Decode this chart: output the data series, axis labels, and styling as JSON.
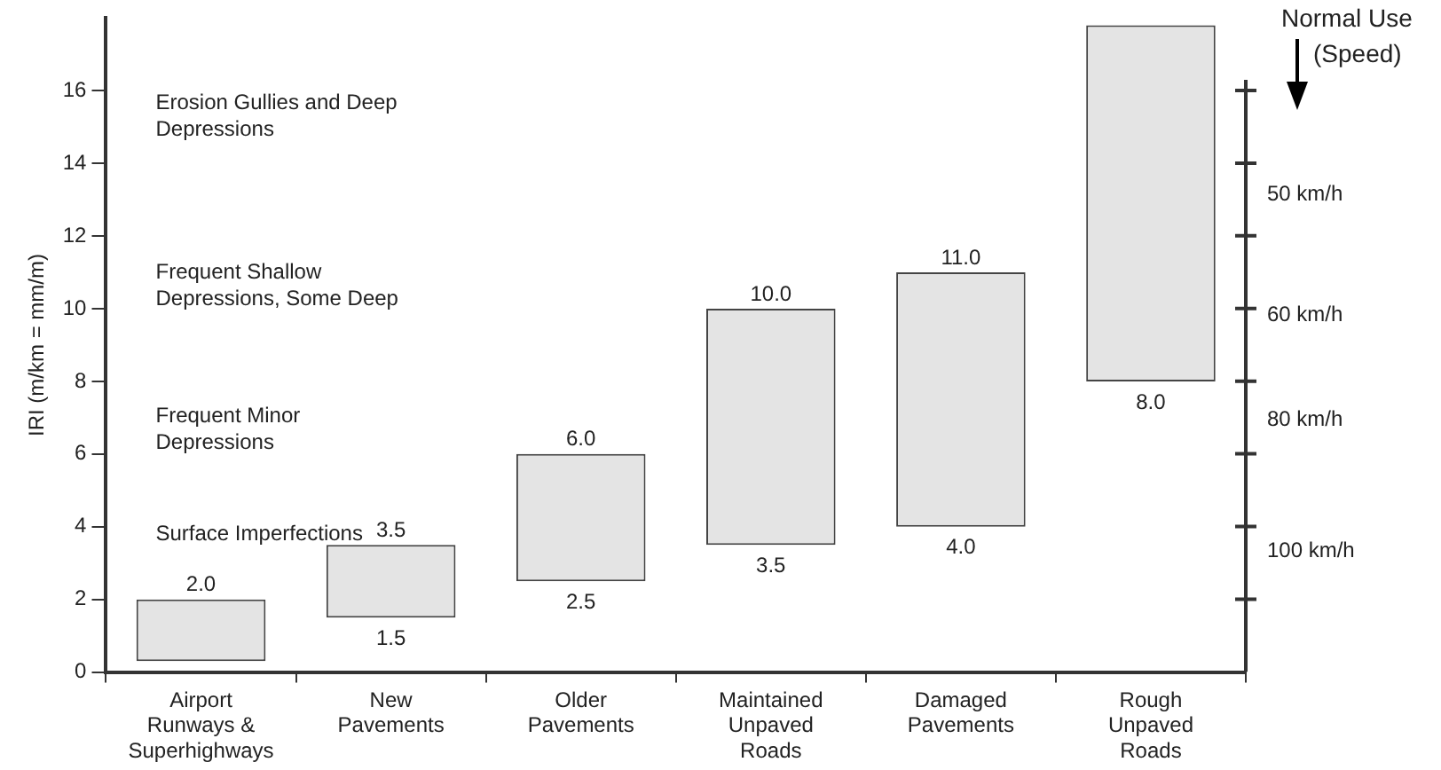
{
  "chart_data": {
    "type": "bar",
    "ylabel": "IRI (m/km = mm/m)",
    "categories": [
      "Airport Runways & Superhighways",
      "New Pavements",
      "Older Pavements",
      "Maintained Unpaved Roads",
      "Damaged Pavements",
      "Rough Unpaved Roads"
    ],
    "base": [
      0.3,
      1.5,
      2.5,
      3.5,
      4.0,
      8.0
    ],
    "values": [
      1.7,
      2.0,
      3.5,
      6.5,
      7.0,
      9.8
    ],
    "color": "#e4e4e4",
    "ylim": [
      0,
      18
    ],
    "yticks": [
      0,
      2,
      4,
      6,
      8,
      10,
      12,
      14,
      16
    ],
    "annotations": [
      "Erosion Gullies and Deep Depressions",
      "Frequent Shallow Depressions, Some Deep",
      "Frequent Minor Depressions",
      "Surface Imperfections",
      "50 km/h",
      "60 km/h",
      "80 km/h",
      "100 km/h",
      "Normal Use (Speed)",
      {
        "text": "2.0",
        "x": "Airport Runways & Superhighways",
        "y": 2.0
      },
      {
        "text": "3.5",
        "x": "New Pavements",
        "y": 3.5
      },
      {
        "text": "1.5",
        "x": "New Pavements",
        "y": 1.5
      },
      {
        "text": "6.0",
        "x": "Older Pavements",
        "y": 6.0
      },
      {
        "text": "2.5",
        "x": "Older Pavements",
        "y": 2.5
      },
      {
        "text": "10.0",
        "x": "Maintained Unpaved Roads",
        "y": 10.0
      },
      {
        "text": "3.5",
        "x": "Maintained Unpaved Roads",
        "y": 3.5
      },
      {
        "text": "11.0",
        "x": "Damaged Pavements",
        "y": 11.0
      },
      {
        "text": "4.0",
        "x": "Damaged Pavements",
        "y": 4.0
      },
      {
        "text": "8.0",
        "x": "Rough Unpaved Roads",
        "y": 8.0
      }
    ],
    "grid": false,
    "legend": false
  }
}
